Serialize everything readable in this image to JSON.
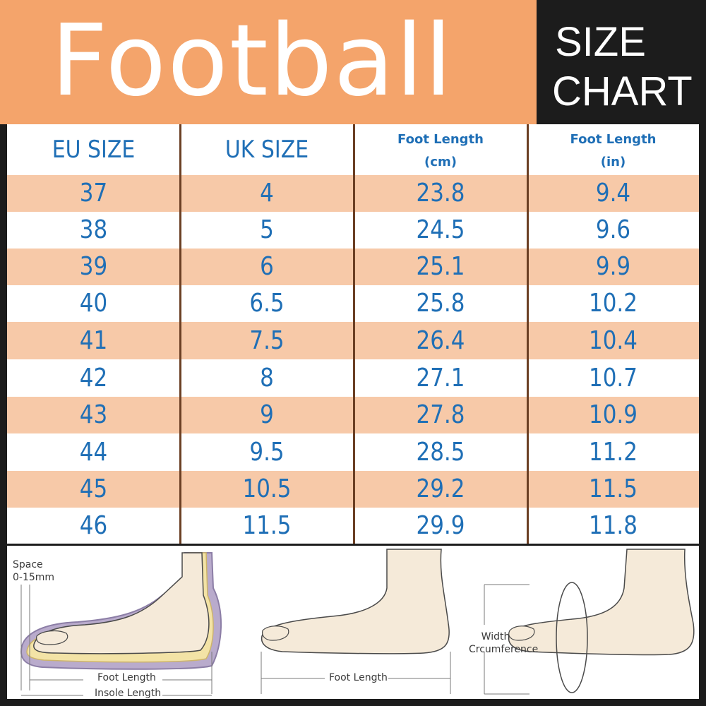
{
  "header": {
    "title": "Football",
    "subtitle_line1": "SIZE",
    "subtitle_line2": "CHART"
  },
  "table": {
    "columns": [
      {
        "label": "EU SIZE"
      },
      {
        "label": "UK SIZE"
      },
      {
        "label": "Foot Length",
        "unit": "(cm)"
      },
      {
        "label": "Foot Length",
        "unit": "(in)"
      }
    ],
    "rows": [
      [
        "37",
        "4",
        "23.8",
        "9.4"
      ],
      [
        "38",
        "5",
        "24.5",
        "9.6"
      ],
      [
        "39",
        "6",
        "25.1",
        "9.9"
      ],
      [
        "40",
        "6.5",
        "25.8",
        "10.2"
      ],
      [
        "41",
        "7.5",
        "26.4",
        "10.4"
      ],
      [
        "42",
        "8",
        "27.1",
        "10.7"
      ],
      [
        "43",
        "9",
        "27.8",
        "10.9"
      ],
      [
        "44",
        "9.5",
        "28.5",
        "11.2"
      ],
      [
        "45",
        "10.5",
        "29.2",
        "11.5"
      ],
      [
        "46",
        "11.5",
        "29.9",
        "11.8"
      ]
    ]
  },
  "illustrations": {
    "insole": {
      "space_label_1": "Space",
      "space_label_2": "0-15mm",
      "foot_length": "Foot Length",
      "insole_length": "Insole Length"
    },
    "foot": {
      "foot_length": "Foot Length"
    },
    "width": {
      "line1": "Width",
      "line2": "Crcumference"
    }
  },
  "colors": {
    "header_orange": "#f4a46b",
    "row_shade": "#f7c9a8",
    "text_blue": "#1f6fb6",
    "divider_brown": "#6b3f24",
    "dark": "#1c1c1c"
  }
}
